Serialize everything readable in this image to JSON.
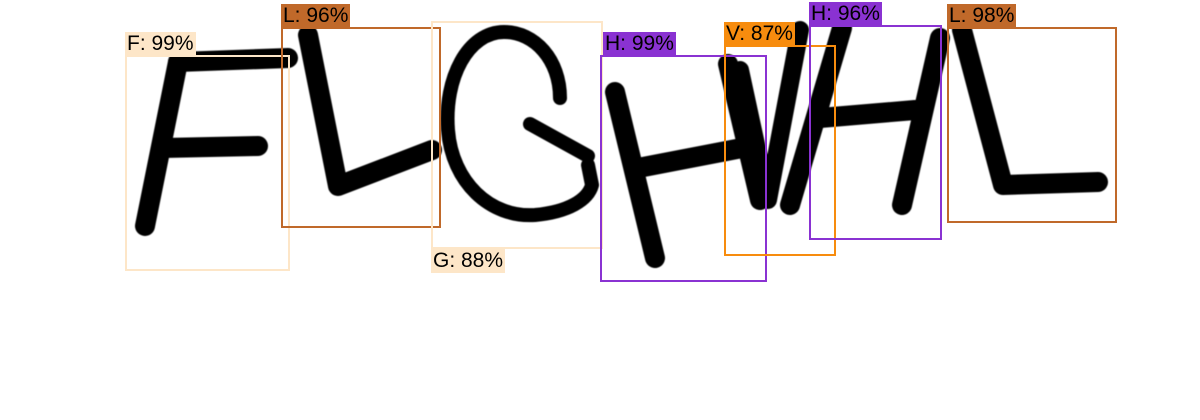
{
  "scene": {
    "handwritten_sequence": [
      "F",
      "L",
      "G",
      "H",
      "V",
      "H",
      "L"
    ],
    "ink_color": "#000000",
    "background": "#ffffff"
  },
  "detections": [
    {
      "text": "F: 99%",
      "char": "F",
      "confidence": 99,
      "color": "#fde6c8"
    },
    {
      "text": "L: 96%",
      "char": "L",
      "confidence": 96,
      "color": "#c0692a"
    },
    {
      "text": "G: 88%",
      "char": "G",
      "confidence": 88,
      "color": "#fde6c8"
    },
    {
      "text": "H: 99%",
      "char": "H",
      "confidence": 99,
      "color": "#8a32d2"
    },
    {
      "text": "V: 87%",
      "char": "V",
      "confidence": 87,
      "color": "#f78c0e"
    },
    {
      "text": "H: 96%",
      "char": "H",
      "confidence": 96,
      "color": "#8a32d2"
    },
    {
      "text": "L: 98%",
      "char": "L",
      "confidence": 98,
      "color": "#c0692a"
    }
  ]
}
